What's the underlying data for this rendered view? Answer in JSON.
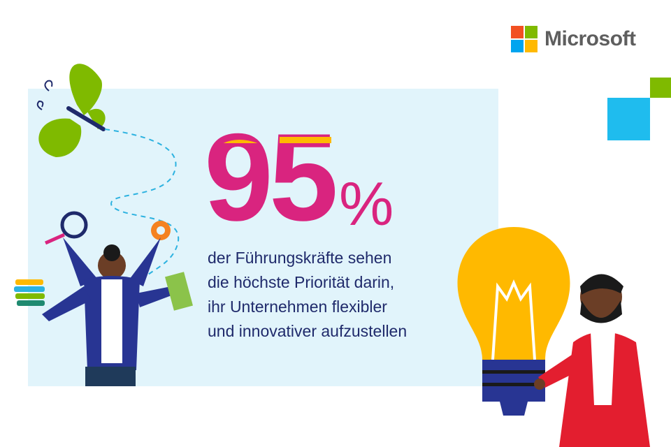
{
  "brand": {
    "name": "Microsoft",
    "logo_colors": [
      "#f25022",
      "#7fba00",
      "#00a4ef",
      "#ffb900"
    ]
  },
  "headline": {
    "number": "95",
    "unit": "%",
    "color": "#d9247f",
    "accent_color": "#ffb900"
  },
  "statement_lines": [
    "der Führungskräfte sehen",
    "die höchste Priorität darin,",
    "ihr Unternehmen flexibler",
    "und innovativer aufzustellen"
  ],
  "colors": {
    "panel": "#e1f4fb",
    "text": "#1f2a6b",
    "square_blue": "#1fbcee",
    "square_green": "#7fba00"
  },
  "illustrations": [
    "butterfly-icon",
    "woman-multitasking-icon",
    "lightbulb-icon",
    "man-holding-lightbulb-icon"
  ]
}
